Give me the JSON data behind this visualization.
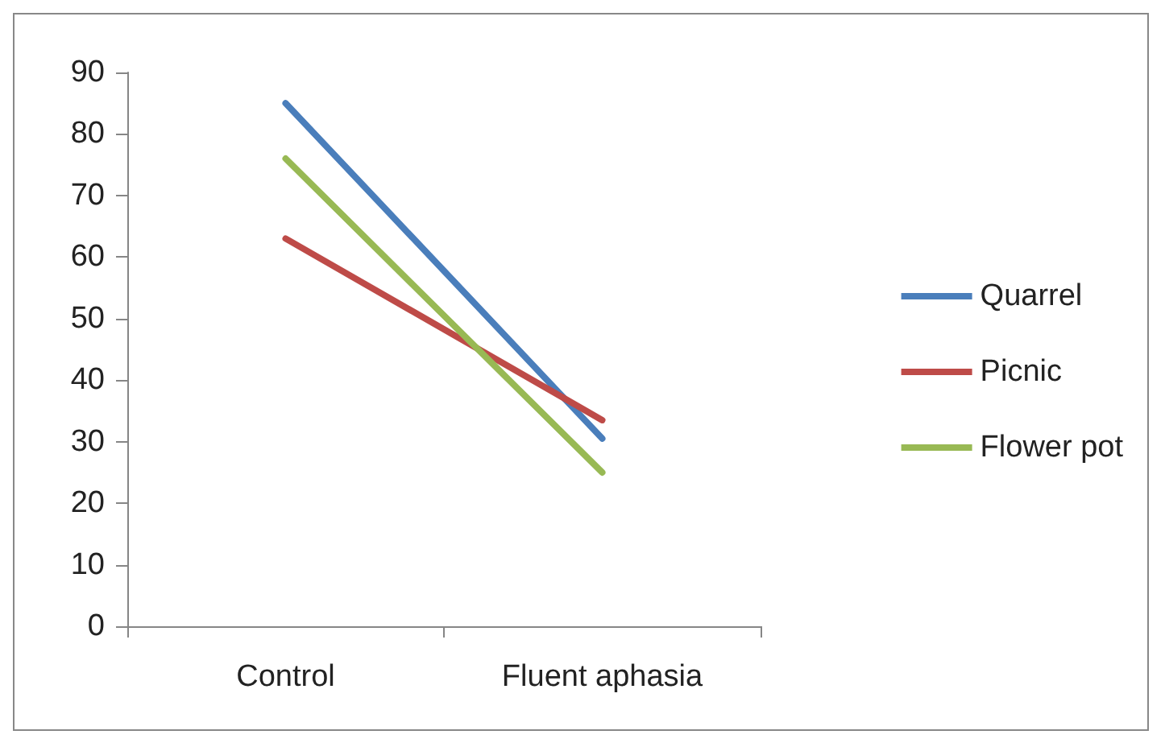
{
  "chart_data": {
    "type": "line",
    "categories": [
      "Control",
      "Fluent aphasia"
    ],
    "series": [
      {
        "name": "Quarrel",
        "color": "#4a7ebb",
        "values": [
          85,
          30.5
        ]
      },
      {
        "name": "Picnic",
        "color": "#be4b48",
        "values": [
          63,
          33.5
        ]
      },
      {
        "name": "Flower pot",
        "color": "#98b954",
        "values": [
          76,
          25
        ]
      }
    ],
    "ylim": [
      0,
      90
    ],
    "yticks": [
      0,
      10,
      20,
      30,
      40,
      50,
      60,
      70,
      80,
      90
    ],
    "grid": false,
    "legend": "right",
    "marker": "none"
  }
}
